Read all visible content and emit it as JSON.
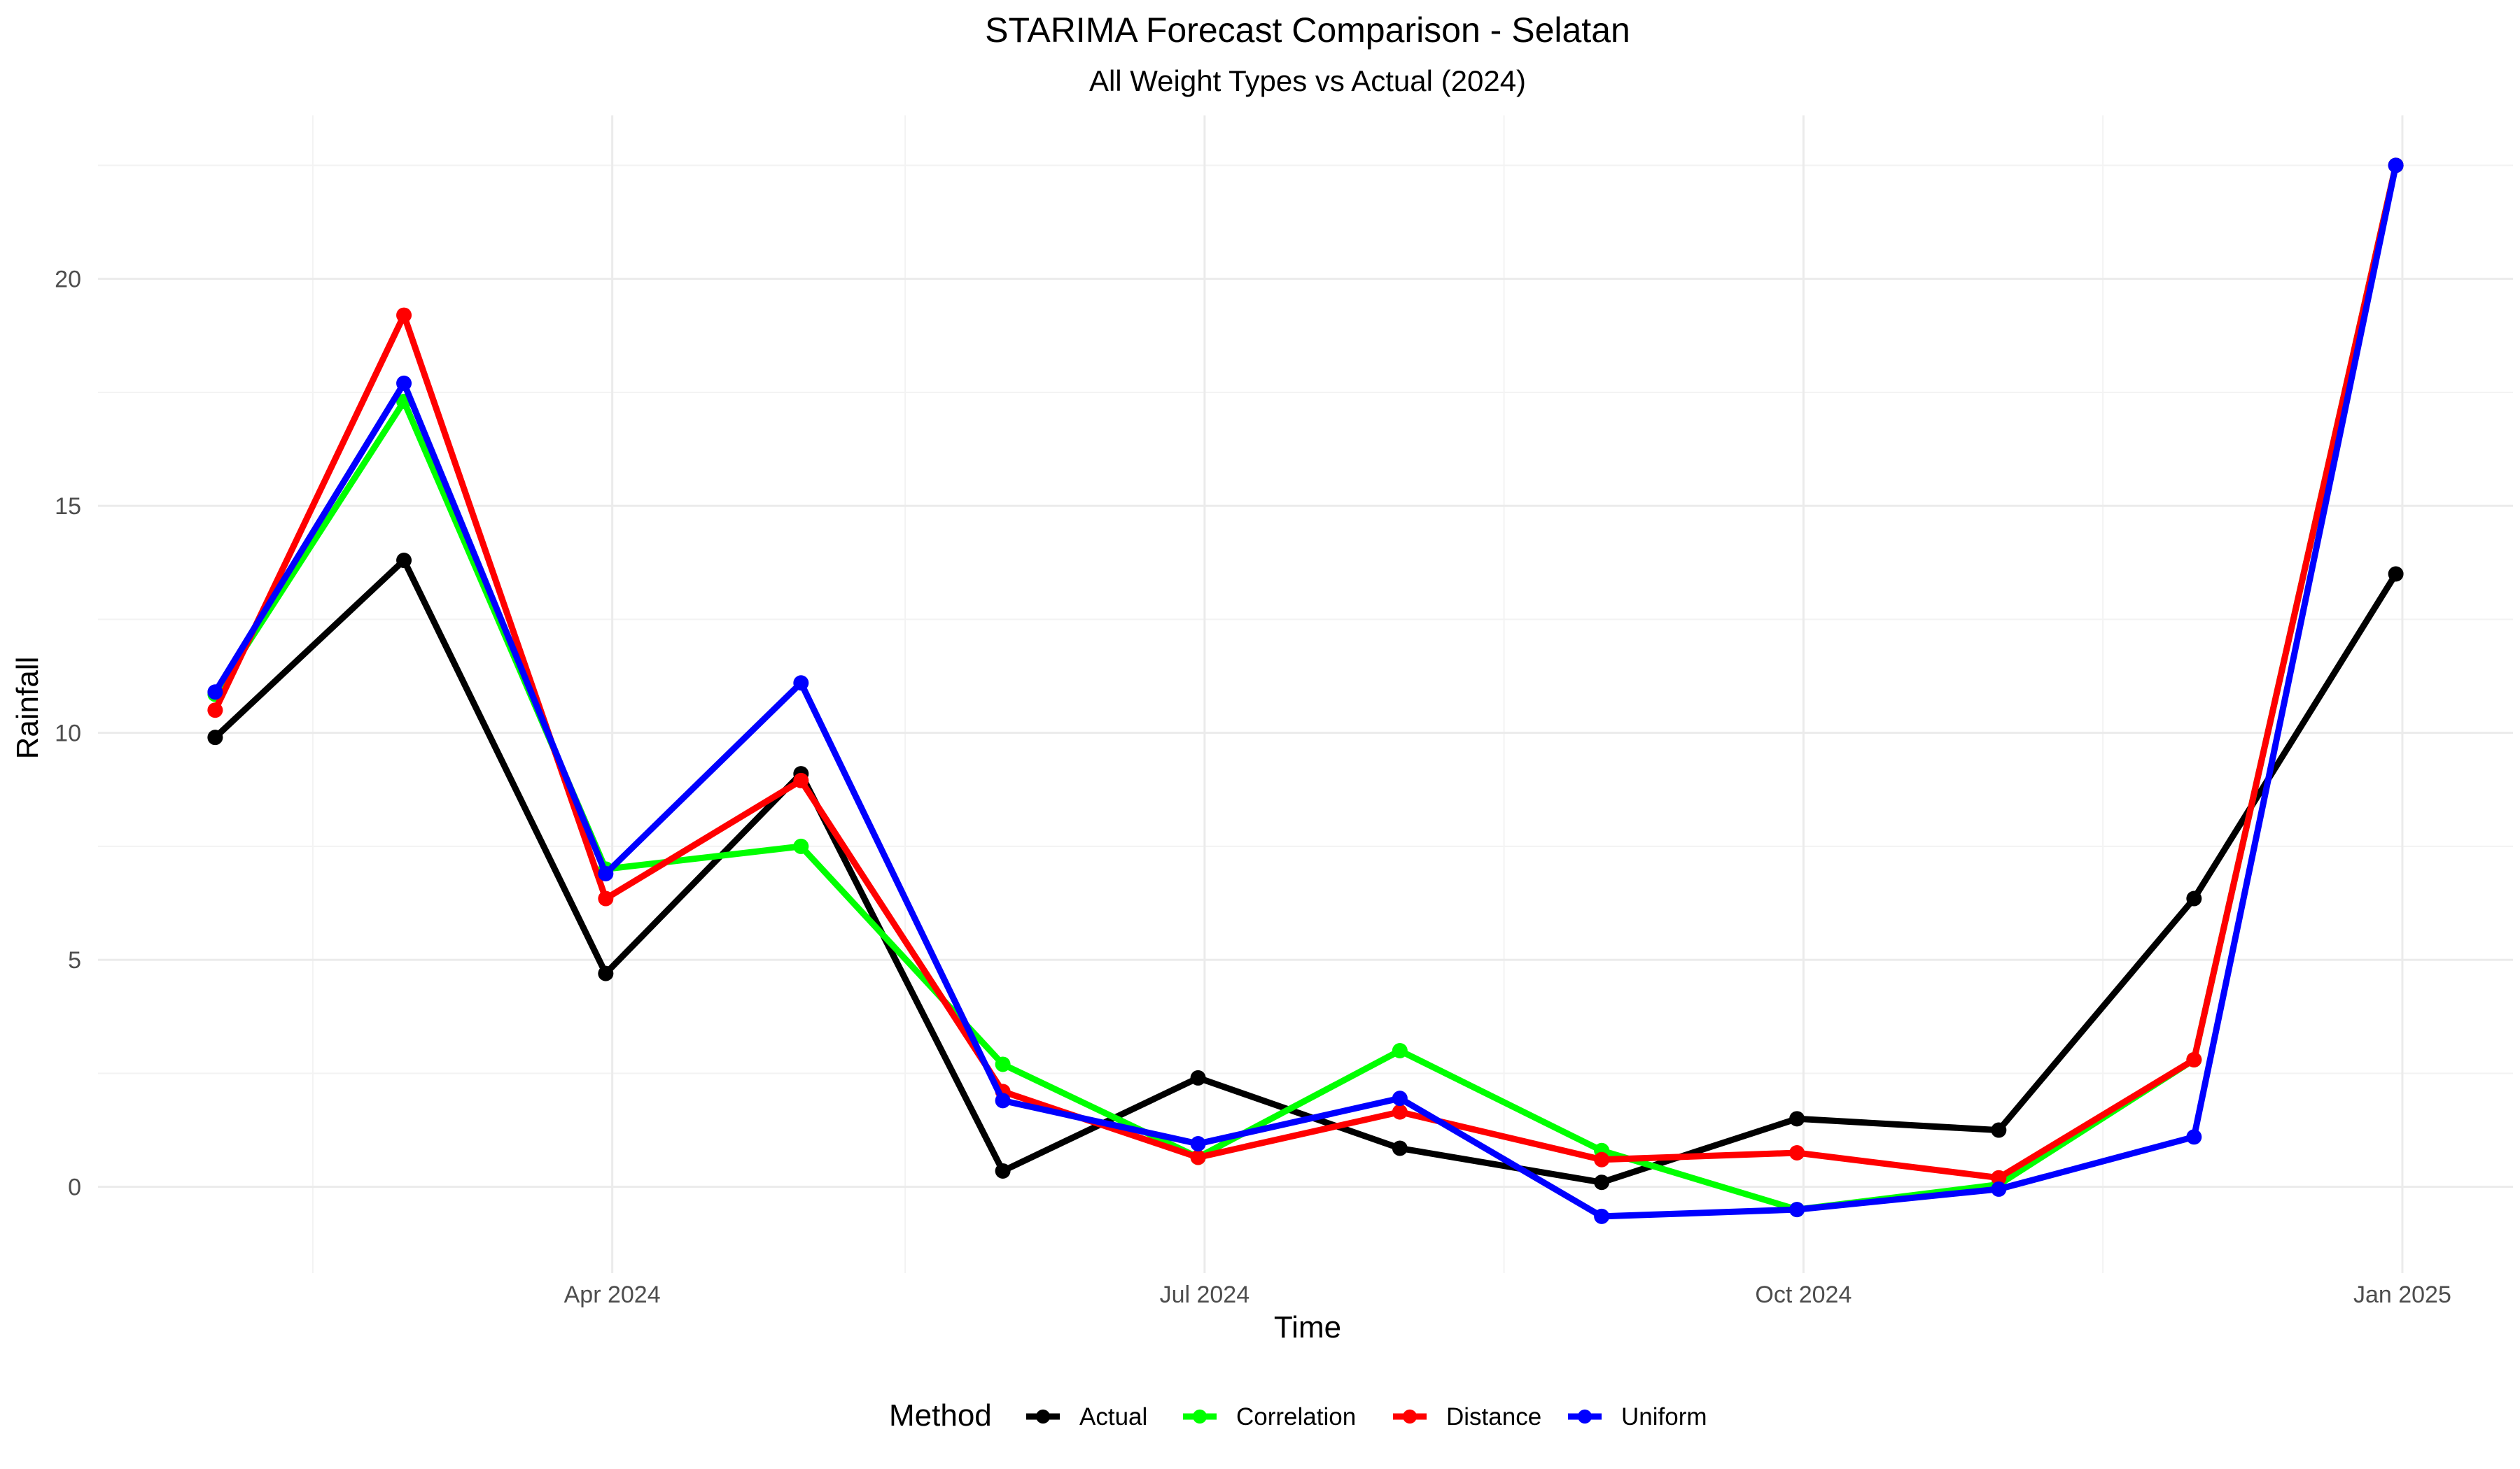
{
  "chart_data": {
    "type": "line",
    "title": "STARIMA Forecast Comparison - Selatan",
    "subtitle": "All Weight Types vs Actual (2024)",
    "xlabel": "Time",
    "ylabel": "Rainfall",
    "x": [
      "2024-01-31",
      "2024-02-29",
      "2024-03-31",
      "2024-04-30",
      "2024-05-31",
      "2024-06-30",
      "2024-07-31",
      "2024-08-31",
      "2024-09-30",
      "2024-10-31",
      "2024-11-30",
      "2024-12-31"
    ],
    "x_ticks": [
      {
        "date": "2024-04-01",
        "label": "Apr 2024"
      },
      {
        "date": "2024-07-01",
        "label": "Jul 2024"
      },
      {
        "date": "2024-10-01",
        "label": "Oct 2024"
      },
      {
        "date": "2025-01-01",
        "label": "Jan 2025"
      }
    ],
    "x_minor_ticks": [
      "2024-02-15",
      "2024-05-16",
      "2024-08-16",
      "2024-11-16"
    ],
    "xlim": [
      "2024-01-13",
      "2025-01-18"
    ],
    "y_ticks": [
      0,
      5,
      10,
      15,
      20
    ],
    "ylim": [
      -1.9,
      23.6
    ],
    "grid": true,
    "legend_title": "Method",
    "legend_position": "bottom",
    "series": [
      {
        "name": "Actual",
        "color": "#000000",
        "values": [
          9.9,
          13.8,
          4.7,
          9.1,
          0.35,
          2.4,
          0.85,
          0.1,
          1.5,
          1.25,
          6.35,
          13.5
        ]
      },
      {
        "name": "Correlation",
        "color": "#00ff00",
        "values": [
          10.85,
          17.3,
          7.0,
          7.5,
          2.7,
          0.65,
          3.0,
          0.8,
          -0.5,
          0.05,
          2.8,
          22.5
        ]
      },
      {
        "name": "Distance",
        "color": "#ff0000",
        "values": [
          10.5,
          19.2,
          6.35,
          8.95,
          2.1,
          0.65,
          1.65,
          0.6,
          0.75,
          0.2,
          2.8,
          22.5
        ]
      },
      {
        "name": "Uniform",
        "color": "#0000ff",
        "values": [
          10.9,
          17.7,
          6.9,
          11.1,
          1.9,
          0.95,
          1.95,
          -0.65,
          -0.5,
          -0.05,
          1.1,
          22.5
        ]
      }
    ]
  }
}
